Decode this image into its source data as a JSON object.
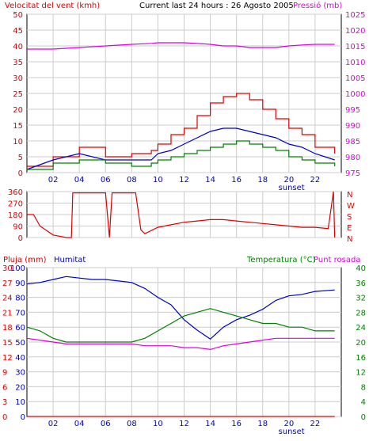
{
  "colors": {
    "wind": "#e00000",
    "wind_avg": "#0000cc",
    "gust_bar": "#008000",
    "pressure": "#dd00dd",
    "direction": "#e00000",
    "rain": "#e00000",
    "humidity": "#0000cc",
    "temperature": "#008000",
    "dewpoint": "#dd00dd",
    "grid": "#cccccc"
  },
  "x_ticks": [
    "02",
    "04",
    "06",
    "08",
    "10",
    "12",
    "14",
    "16",
    "18",
    "20",
    "22"
  ],
  "sunset_label": "sunset",
  "chart_data": [
    {
      "type": "line",
      "title": "Current last 24 hours : 26 Agosto 2005",
      "ylabel_left": "Velocitat del vent (kmh)",
      "ylabel_right": "Pressió (mb)",
      "left_ticks": [
        "0",
        "5",
        "10",
        "15",
        "20",
        "25",
        "30",
        "35",
        "40",
        "45",
        "50"
      ],
      "right_ticks": [
        "975",
        "980",
        "985",
        "990",
        "995",
        "1000",
        "1005",
        "1010",
        "1015",
        "1020",
        "1025"
      ],
      "ylim_left": [
        0,
        50
      ],
      "ylim_right": [
        975,
        1025
      ],
      "x_hours": [
        0,
        2,
        4,
        6,
        8,
        9.5,
        10,
        11,
        12,
        13,
        14,
        15,
        16,
        17,
        18,
        19,
        20,
        21,
        22,
        23.5
      ],
      "series": [
        {
          "axis": "left",
          "style": "wind",
          "values": [
            2,
            5,
            8,
            5,
            6,
            7,
            9,
            12,
            14,
            18,
            22,
            24,
            25,
            23,
            20,
            17,
            14,
            12,
            8,
            6
          ]
        },
        {
          "axis": "left",
          "style": "wind_avg",
          "values": [
            1,
            4,
            6,
            4,
            4,
            4,
            6,
            7,
            9,
            11,
            13,
            14,
            14,
            13,
            12,
            11,
            9,
            8,
            6,
            4
          ]
        },
        {
          "axis": "left",
          "style": "gust_bar",
          "values": [
            1,
            3,
            4,
            3,
            2,
            3,
            4,
            5,
            6,
            7,
            8,
            9,
            10,
            9,
            8,
            7,
            5,
            4,
            3,
            2
          ]
        },
        {
          "axis": "right",
          "style": "pressure",
          "values": [
            1014,
            1014,
            1014.5,
            1015,
            1015.5,
            1015.8,
            1016,
            1016,
            1016,
            1015.8,
            1015.5,
            1015,
            1015,
            1014.5,
            1014.5,
            1014.5,
            1015,
            1015.3,
            1015.5,
            1015.5
          ]
        }
      ]
    },
    {
      "type": "line",
      "left_ticks": [
        "0",
        "90",
        "180",
        "270",
        "360"
      ],
      "right_ticks": [
        "N",
        "E",
        "S",
        "W",
        "N"
      ],
      "ylim": [
        0,
        360
      ],
      "x_hours": [
        0,
        0.5,
        1,
        2,
        3,
        3.4,
        3.5,
        5,
        6,
        6.3,
        6.5,
        8.3,
        8.7,
        9,
        10,
        11,
        12,
        13,
        14,
        15,
        16,
        17,
        18,
        19,
        20,
        21,
        22,
        23,
        23.4,
        23.5
      ],
      "values": [
        180,
        180,
        90,
        20,
        0,
        0,
        350,
        350,
        350,
        0,
        350,
        350,
        60,
        30,
        80,
        100,
        120,
        130,
        140,
        140,
        130,
        120,
        110,
        100,
        90,
        80,
        80,
        70,
        360,
        0
      ]
    },
    {
      "type": "line",
      "ylabel_left_outer": "Pluja (mm)",
      "ylabel_left_inner": "Humitat",
      "ylabel_right_inner": "Temperatura (°C)",
      "ylabel_right_outer": "Punt rosada",
      "rain_ticks": [
        "0",
        "3",
        "6",
        "9",
        "12",
        "15",
        "18",
        "21",
        "24",
        "27",
        "30"
      ],
      "humidity_ticks": [
        "0",
        "10",
        "20",
        "30",
        "40",
        "50",
        "60",
        "70",
        "80",
        "90",
        "100"
      ],
      "temp_ticks": [
        "0",
        "4",
        "8",
        "12",
        "16",
        "20",
        "24",
        "28",
        "32",
        "36",
        "40"
      ],
      "ylim_rain": [
        0,
        30
      ],
      "ylim_humidity": [
        0,
        100
      ],
      "ylim_temp": [
        0,
        40
      ],
      "x_hours": [
        0,
        1,
        2,
        3,
        4,
        5,
        6,
        7,
        8,
        9,
        10,
        11,
        12,
        13,
        14,
        15,
        16,
        17,
        18,
        19,
        20,
        21,
        22,
        23.5
      ],
      "series": [
        {
          "axis": "humidity",
          "style": "humidity",
          "values": [
            89,
            90,
            92,
            94,
            93,
            92,
            92,
            91,
            90,
            86,
            80,
            75,
            65,
            58,
            52,
            60,
            65,
            68,
            72,
            78,
            81,
            82,
            84,
            85
          ]
        },
        {
          "axis": "temp",
          "style": "temperature",
          "values": [
            24,
            23,
            21,
            20,
            20,
            20,
            20,
            20,
            20,
            21,
            23,
            25,
            27,
            28,
            29,
            28,
            27,
            26,
            25,
            25,
            24,
            24,
            23,
            23
          ]
        },
        {
          "axis": "temp",
          "style": "dewpoint",
          "values": [
            21,
            20.5,
            20,
            19.5,
            19.5,
            19.5,
            19.5,
            19.5,
            19.5,
            19,
            19,
            19,
            18.5,
            18.5,
            18,
            19,
            19.5,
            20,
            20.5,
            21,
            21,
            21,
            21,
            21
          ]
        },
        {
          "axis": "rain",
          "style": "rain",
          "values": [
            0,
            0,
            0,
            0,
            0,
            0,
            0,
            0,
            0,
            0,
            0,
            0,
            0,
            0,
            0,
            0,
            0,
            0,
            0,
            0,
            0,
            0,
            0,
            0
          ]
        }
      ]
    }
  ]
}
